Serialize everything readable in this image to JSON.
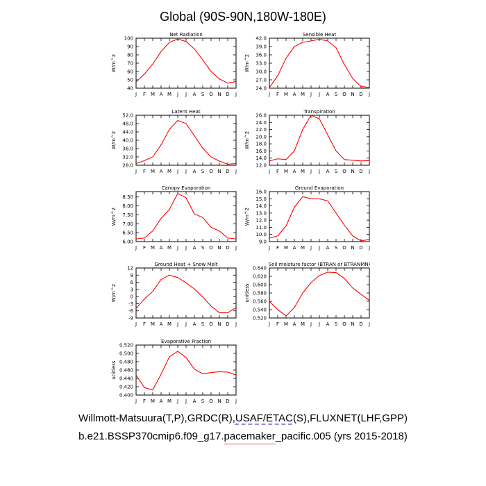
{
  "figure_title": "Global (90S-90N,180W-180E)",
  "caption_line1": {
    "before": "Willmott-Matsuura(T,P),GRDC(R),",
    "underlined": "USAF/ETAC",
    "after": "(S),FLUXNET(LHF,GPP)"
  },
  "caption_line2": {
    "before": "b.e21.BSSP370cmip6.f09_g17.",
    "underlined": "pacemaker",
    "after": "_pacific.005 (yrs 2015-2018)"
  },
  "colors": {
    "line": "#ff0000",
    "axis": "#000000"
  },
  "chart_data": [
    {
      "type": "line",
      "title": "Net Radiation",
      "ylabel": "W/m^2",
      "categories": [
        "J",
        "F",
        "M",
        "A",
        "M",
        "J",
        "J",
        "A",
        "S",
        "O",
        "N",
        "D",
        "J"
      ],
      "yticks": [
        "40",
        "50",
        "60",
        "70",
        "80",
        "90",
        "100"
      ],
      "ylim": [
        40,
        100
      ],
      "values": [
        47.5,
        57,
        69,
        84,
        95,
        99,
        96,
        87,
        74,
        60,
        51,
        46,
        48
      ]
    },
    {
      "type": "line",
      "title": "Sensible Heat",
      "ylabel": "W/m^2",
      "categories": [
        "J",
        "F",
        "M",
        "A",
        "M",
        "J",
        "J",
        "A",
        "S",
        "O",
        "N",
        "D",
        "J"
      ],
      "yticks": [
        "24.0",
        "27.0",
        "30.0",
        "33.0",
        "36.0",
        "39.0",
        "42.0"
      ],
      "ylim": [
        24,
        42
      ],
      "values": [
        24.2,
        28.5,
        34.8,
        39,
        40.5,
        41,
        41.6,
        41,
        38.6,
        32.5,
        27.5,
        24.6,
        24.3
      ]
    },
    {
      "type": "line",
      "title": "Latent Heat",
      "ylabel": "W/m^2",
      "categories": [
        "J",
        "F",
        "M",
        "A",
        "M",
        "J",
        "J",
        "A",
        "S",
        "O",
        "N",
        "D",
        "J"
      ],
      "yticks": [
        "28.0",
        "32.0",
        "36.0",
        "40.0",
        "44.0",
        "48.0",
        "52.0"
      ],
      "ylim": [
        28,
        52
      ],
      "values": [
        28.8,
        30.2,
        32,
        37.8,
        45.2,
        49.5,
        48,
        42.2,
        36.2,
        32,
        30,
        28.5,
        28.8
      ]
    },
    {
      "type": "line",
      "title": "Transpiration",
      "ylabel": "W/m^2",
      "categories": [
        "J",
        "F",
        "M",
        "A",
        "M",
        "J",
        "J",
        "A",
        "S",
        "O",
        "N",
        "D",
        "J"
      ],
      "yticks": [
        "12.0",
        "14.0",
        "16.0",
        "18.0",
        "20.0",
        "22.0",
        "24.0",
        "26.0"
      ],
      "ylim": [
        12,
        26
      ],
      "values": [
        13.2,
        13.8,
        13.6,
        16,
        22,
        26,
        25,
        20.5,
        16,
        13.6,
        13.4,
        13.2,
        13.3
      ]
    },
    {
      "type": "line",
      "title": "Canopy Evaporation",
      "ylabel": "W/m^2",
      "categories": [
        "J",
        "F",
        "M",
        "A",
        "M",
        "J",
        "J",
        "A",
        "S",
        "O",
        "N",
        "D",
        "J"
      ],
      "yticks": [
        "6.00",
        "6.50",
        "7.00",
        "7.50",
        "8.00",
        "8.50"
      ],
      "ylim": [
        6.0,
        8.8
      ],
      "values": [
        6.15,
        6.2,
        6.6,
        7.3,
        7.8,
        8.7,
        8.45,
        7.55,
        7.35,
        6.8,
        6.6,
        6.2,
        6.15
      ]
    },
    {
      "type": "line",
      "title": "Ground Evaporation",
      "ylabel": "W/m^2",
      "categories": [
        "J",
        "F",
        "M",
        "A",
        "M",
        "J",
        "J",
        "A",
        "S",
        "O",
        "N",
        "D",
        "J"
      ],
      "yticks": [
        "9.0",
        "10.0",
        "11.0",
        "12.0",
        "13.0",
        "14.0",
        "15.0",
        "16.0"
      ],
      "ylim": [
        9,
        16
      ],
      "values": [
        9.5,
        9.8,
        11.2,
        13.8,
        15.3,
        15,
        15,
        14.7,
        13,
        11.3,
        9.8,
        9.1,
        9.3
      ]
    },
    {
      "type": "line",
      "title": "Ground Heat + Snow Melt",
      "ylabel": "W/m^2",
      "categories": [
        "J",
        "F",
        "M",
        "A",
        "M",
        "J",
        "J",
        "A",
        "S",
        "O",
        "N",
        "D",
        "J"
      ],
      "yticks": [
        "-9",
        "-6",
        "-3",
        "0",
        "3",
        "6",
        "9",
        "12"
      ],
      "ylim": [
        -9,
        12
      ],
      "values": [
        -5,
        -1,
        2.2,
        7.2,
        9,
        8,
        5.8,
        3.2,
        -0.2,
        -4,
        -6.8,
        -6.8,
        -4.6
      ]
    },
    {
      "type": "line",
      "title": "Soil moisture factor (BTRAN or BTRANMN)",
      "ylabel": "unitless",
      "categories": [
        "J",
        "F",
        "M",
        "A",
        "M",
        "J",
        "J",
        "A",
        "S",
        "O",
        "N",
        "D",
        "J"
      ],
      "yticks": [
        "0.520",
        "0.540",
        "0.560",
        "0.580",
        "0.600",
        "0.620",
        "0.640"
      ],
      "ylim": [
        0.52,
        0.64
      ],
      "values": [
        0.56,
        0.54,
        0.525,
        0.545,
        0.58,
        0.605,
        0.622,
        0.63,
        0.629,
        0.615,
        0.592,
        0.577,
        0.562
      ]
    },
    {
      "type": "line",
      "title": "Evaporative Fraction",
      "ylabel": "unitless",
      "categories": [
        "J",
        "F",
        "M",
        "A",
        "M",
        "J",
        "J",
        "A",
        "S",
        "O",
        "N",
        "D",
        "J"
      ],
      "yticks": [
        "0.400",
        "0.420",
        "0.440",
        "0.460",
        "0.480",
        "0.500",
        "0.520"
      ],
      "ylim": [
        0.4,
        0.52
      ],
      "values": [
        0.448,
        0.418,
        0.412,
        0.45,
        0.492,
        0.505,
        0.49,
        0.462,
        0.451,
        0.454,
        0.456,
        0.455,
        0.448
      ]
    }
  ]
}
